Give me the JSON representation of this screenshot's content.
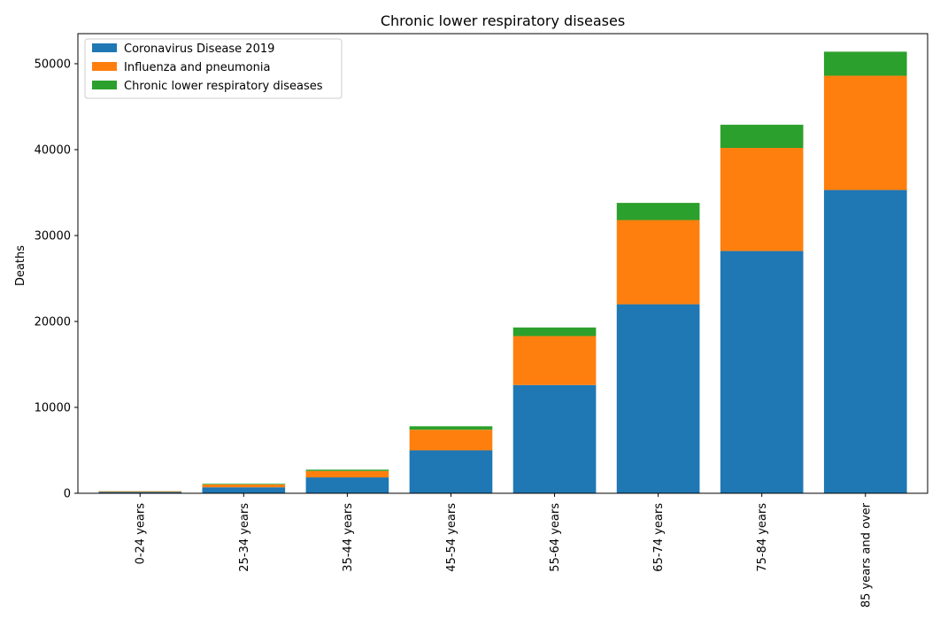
{
  "chart_data": {
    "type": "bar",
    "stacked": true,
    "title": "Chronic lower respiratory diseases",
    "xlabel": "",
    "ylabel": "Deaths",
    "ylim": [
      0,
      53500
    ],
    "yticks": [
      0,
      10000,
      20000,
      30000,
      40000,
      50000
    ],
    "categories": [
      "0-24 years",
      "25-34 years",
      "35-44 years",
      "45-54 years",
      "55-64 years",
      "65-74 years",
      "75-84 years",
      "85 years and over"
    ],
    "series": [
      {
        "name": "Coronavirus Disease 2019",
        "color": "#1f77b4",
        "values": [
          150,
          700,
          1850,
          5000,
          12600,
          22000,
          28200,
          35300
        ]
      },
      {
        "name": "Influenza and pneumonia",
        "color": "#ff7f0e",
        "values": [
          80,
          320,
          750,
          2400,
          5700,
          9800,
          12000,
          13300
        ]
      },
      {
        "name": "Chronic lower respiratory diseases",
        "color": "#2ca02c",
        "values": [
          20,
          80,
          150,
          400,
          1000,
          2000,
          2700,
          2800
        ]
      }
    ],
    "grid": false,
    "legend_position": "upper-left"
  }
}
